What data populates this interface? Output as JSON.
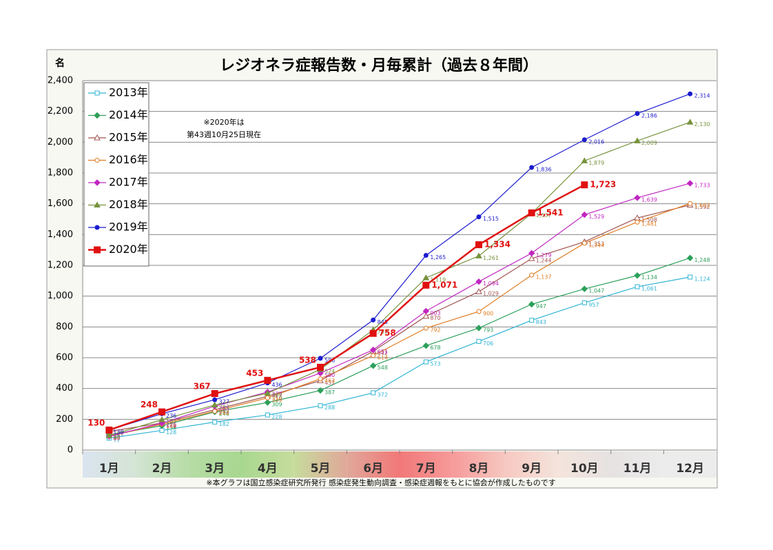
{
  "chart_data": {
    "type": "line",
    "title": "レジオネラ症報告数・月毎累計（過去８年間）",
    "y_label": "名",
    "annotation": [
      "※2020年は",
      "第43週10月25日現在"
    ],
    "source": "※本グラフは国立感染症研究所発行 感染症発生動向調査・感染症週報をもとに協会が作成したものです",
    "categories": [
      "1月",
      "2月",
      "3月",
      "4月",
      "5月",
      "6月",
      "7月",
      "8月",
      "9月",
      "10月",
      "11月",
      "12月"
    ],
    "ylim": [
      0,
      2400
    ],
    "yticks": [
      0,
      200,
      400,
      600,
      800,
      {
        "value": 1000,
        "label": "1,000"
      },
      {
        "value": 1200,
        "label": "1,200"
      },
      {
        "value": 1400,
        "label": "1,400"
      },
      {
        "value": 1600,
        "label": "1,600"
      },
      {
        "value": 1800,
        "label": "1,800"
      },
      {
        "value": 2000,
        "label": "2,000"
      },
      {
        "value": 2200,
        "label": "2,200"
      },
      {
        "value": 2400,
        "label": "2,400"
      }
    ],
    "grid": true,
    "legend": "upper left",
    "series": [
      {
        "name": "2013年",
        "color": "#2eb4d4",
        "marker": "square",
        "values": [
          77,
          128,
          182,
          228,
          288,
          372,
          573,
          706,
          843,
          957,
          1061,
          1124
        ],
        "value_labels": [
          "77",
          "128",
          "182",
          "228",
          "288",
          "372",
          "573",
          "706",
          "843",
          "957",
          "1,061",
          "1,124"
        ]
      },
      {
        "name": "2014年",
        "color": "#2ca05a",
        "marker": "diamond",
        "values": [
          98,
          158,
          248,
          309,
          387,
          548,
          678,
          793,
          947,
          1047,
          1134,
          1248
        ],
        "value_labels": [
          "98",
          "158",
          "248",
          "309",
          "387",
          "548",
          "678",
          "793",
          "947",
          "1,047",
          "1,134",
          "1,248"
        ]
      },
      {
        "name": "2015年",
        "color": "#a0524f",
        "marker": "triangle",
        "values": [
          121,
          176,
          262,
          350,
          451,
          642,
          870,
          1029,
          1244,
          1353,
          1508,
          1592
        ],
        "value_labels": [
          "121",
          "176",
          "262",
          "350",
          "451",
          "642",
          "870",
          "1,029",
          "1,244",
          "1,353",
          "1,508",
          "1,592"
        ]
      },
      {
        "name": "2016年",
        "color": "#e07b20",
        "marker": "circle",
        "values": [
          90,
          168,
          252,
          339,
          463,
          614,
          792,
          900,
          1137,
          1344,
          1481,
          1602
        ],
        "value_labels": [
          "90",
          "168",
          "252",
          "339",
          "463",
          "614",
          "792",
          "900",
          "1,137",
          "1,344",
          "1,481",
          "1,602"
        ]
      },
      {
        "name": "2017年",
        "color": "#c026c0",
        "marker": "diamond",
        "values": [
          89,
          175,
          285,
          377,
          500,
          651,
          903,
          1094,
          1279,
          1529,
          1639,
          1733
        ],
        "value_labels": [
          "89",
          "175",
          "285",
          "377",
          "500",
          "651",
          "903",
          "1,094",
          "1,279",
          "1,529",
          "1,639",
          "1,733"
        ]
      },
      {
        "name": "2018年",
        "color": "#77933c",
        "marker": "triangle",
        "values": [
          94,
          197,
          293,
          369,
          524,
          781,
          1119,
          1261,
          1537,
          1879,
          2009,
          2130
        ],
        "value_labels": [
          "94",
          "197",
          "293",
          "369",
          "524",
          "781",
          "1,119",
          "1,261",
          "1,537",
          "1,879",
          "2,009",
          "2,130"
        ]
      },
      {
        "name": "2019年",
        "color": "#1c1ccf",
        "marker": "circle",
        "values": [
          130,
          236,
          327,
          436,
          596,
          845,
          1265,
          1515,
          1836,
          2016,
          2186,
          2314
        ],
        "value_labels": [
          "130",
          "236",
          "327",
          "436",
          "596",
          "845",
          "1,265",
          "1,515",
          "1,836",
          "2,016",
          "2,186",
          "2,314"
        ]
      },
      {
        "name": "2020年",
        "color": "#e01010",
        "marker": "square",
        "values": [
          130,
          248,
          367,
          453,
          538,
          758,
          1071,
          1334,
          1541,
          1723,
          null,
          null
        ],
        "value_labels": [
          "130",
          "248",
          "367",
          "453",
          "538",
          "758",
          "1,071",
          "1,334",
          "1,541",
          "1,723",
          null,
          null
        ]
      }
    ]
  }
}
